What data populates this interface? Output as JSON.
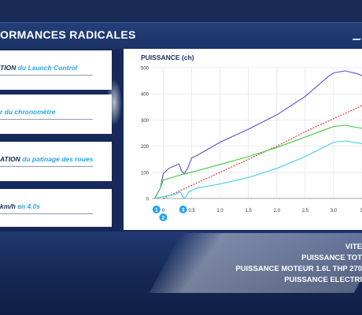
{
  "header": {
    "title": "ORMANCES RADICALES"
  },
  "cards": [
    {
      "prefix": "TION",
      "highlight": "",
      "suffix": " du Launch Control"
    },
    {
      "prefix": "",
      "highlight": "",
      "suffix": "r du chronomètre"
    },
    {
      "prefix": "ATION",
      "highlight": "",
      "suffix": " du patinage des roues"
    },
    {
      "prefix": "km/h",
      "highlight": " en 4.0s",
      "suffix": ""
    }
  ],
  "legend_lines": [
    "VITE",
    "PUISSANCE TOT",
    "PUISSANCE MOTEUR 1.6L THP 270",
    "PUISSANCE ELECTRI"
  ],
  "colors": {
    "total": "#5b4fd6",
    "reference": "#e0302a",
    "engine": "#3ec83e",
    "electric": "#3ccfe6",
    "marker": "#27a6e8"
  },
  "markers": [
    "1",
    "2",
    "3"
  ],
  "chart_data": {
    "type": "line",
    "title": "PUISSANCE (ch)",
    "xlabel": "",
    "ylabel": "PUISSANCE (ch)",
    "xlim": [
      -0.2,
      3.5
    ],
    "ylim": [
      0,
      500
    ],
    "x_ticks": [
      "0",
      "0.5",
      "1.0",
      "1.5",
      "2.0",
      "2.5",
      "3.0",
      "3."
    ],
    "y_ticks": [
      "0",
      "100",
      "200",
      "300",
      "400",
      "500"
    ],
    "grid": true,
    "series": [
      {
        "key": "total",
        "values": [
          [
            -0.15,
            0
          ],
          [
            -0.05,
            40
          ],
          [
            0.0,
            95
          ],
          [
            0.1,
            115
          ],
          [
            0.2,
            125
          ],
          [
            0.28,
            132
          ],
          [
            0.32,
            105
          ],
          [
            0.37,
            95
          ],
          [
            0.43,
            115
          ],
          [
            0.5,
            155
          ],
          [
            0.6,
            165
          ],
          [
            1.0,
            215
          ],
          [
            1.5,
            265
          ],
          [
            2.0,
            320
          ],
          [
            2.5,
            390
          ],
          [
            2.9,
            465
          ],
          [
            3.0,
            480
          ],
          [
            3.2,
            488
          ],
          [
            3.4,
            478
          ],
          [
            3.5,
            470
          ]
        ]
      },
      {
        "key": "reference",
        "values": [
          [
            0.0,
            0
          ],
          [
            0.5,
            50
          ],
          [
            1.0,
            100
          ],
          [
            1.5,
            150
          ],
          [
            2.0,
            200
          ],
          [
            2.5,
            255
          ],
          [
            3.0,
            305
          ],
          [
            3.5,
            355
          ]
        ]
      },
      {
        "key": "engine",
        "values": [
          [
            -0.15,
            0
          ],
          [
            -0.05,
            40
          ],
          [
            0.0,
            70
          ],
          [
            0.3,
            90
          ],
          [
            0.5,
            100
          ],
          [
            1.0,
            130
          ],
          [
            1.5,
            160
          ],
          [
            2.0,
            195
          ],
          [
            2.5,
            235
          ],
          [
            3.0,
            275
          ],
          [
            3.2,
            280
          ],
          [
            3.5,
            268
          ]
        ]
      },
      {
        "key": "electric",
        "values": [
          [
            -0.15,
            0
          ],
          [
            -0.05,
            5
          ],
          [
            0.2,
            15
          ],
          [
            0.3,
            25
          ],
          [
            0.35,
            5
          ],
          [
            0.38,
            0
          ],
          [
            0.45,
            25
          ],
          [
            0.6,
            40
          ],
          [
            1.0,
            55
          ],
          [
            1.5,
            80
          ],
          [
            2.0,
            115
          ],
          [
            2.5,
            160
          ],
          [
            3.0,
            215
          ],
          [
            3.2,
            220
          ],
          [
            3.5,
            210
          ]
        ]
      }
    ]
  }
}
